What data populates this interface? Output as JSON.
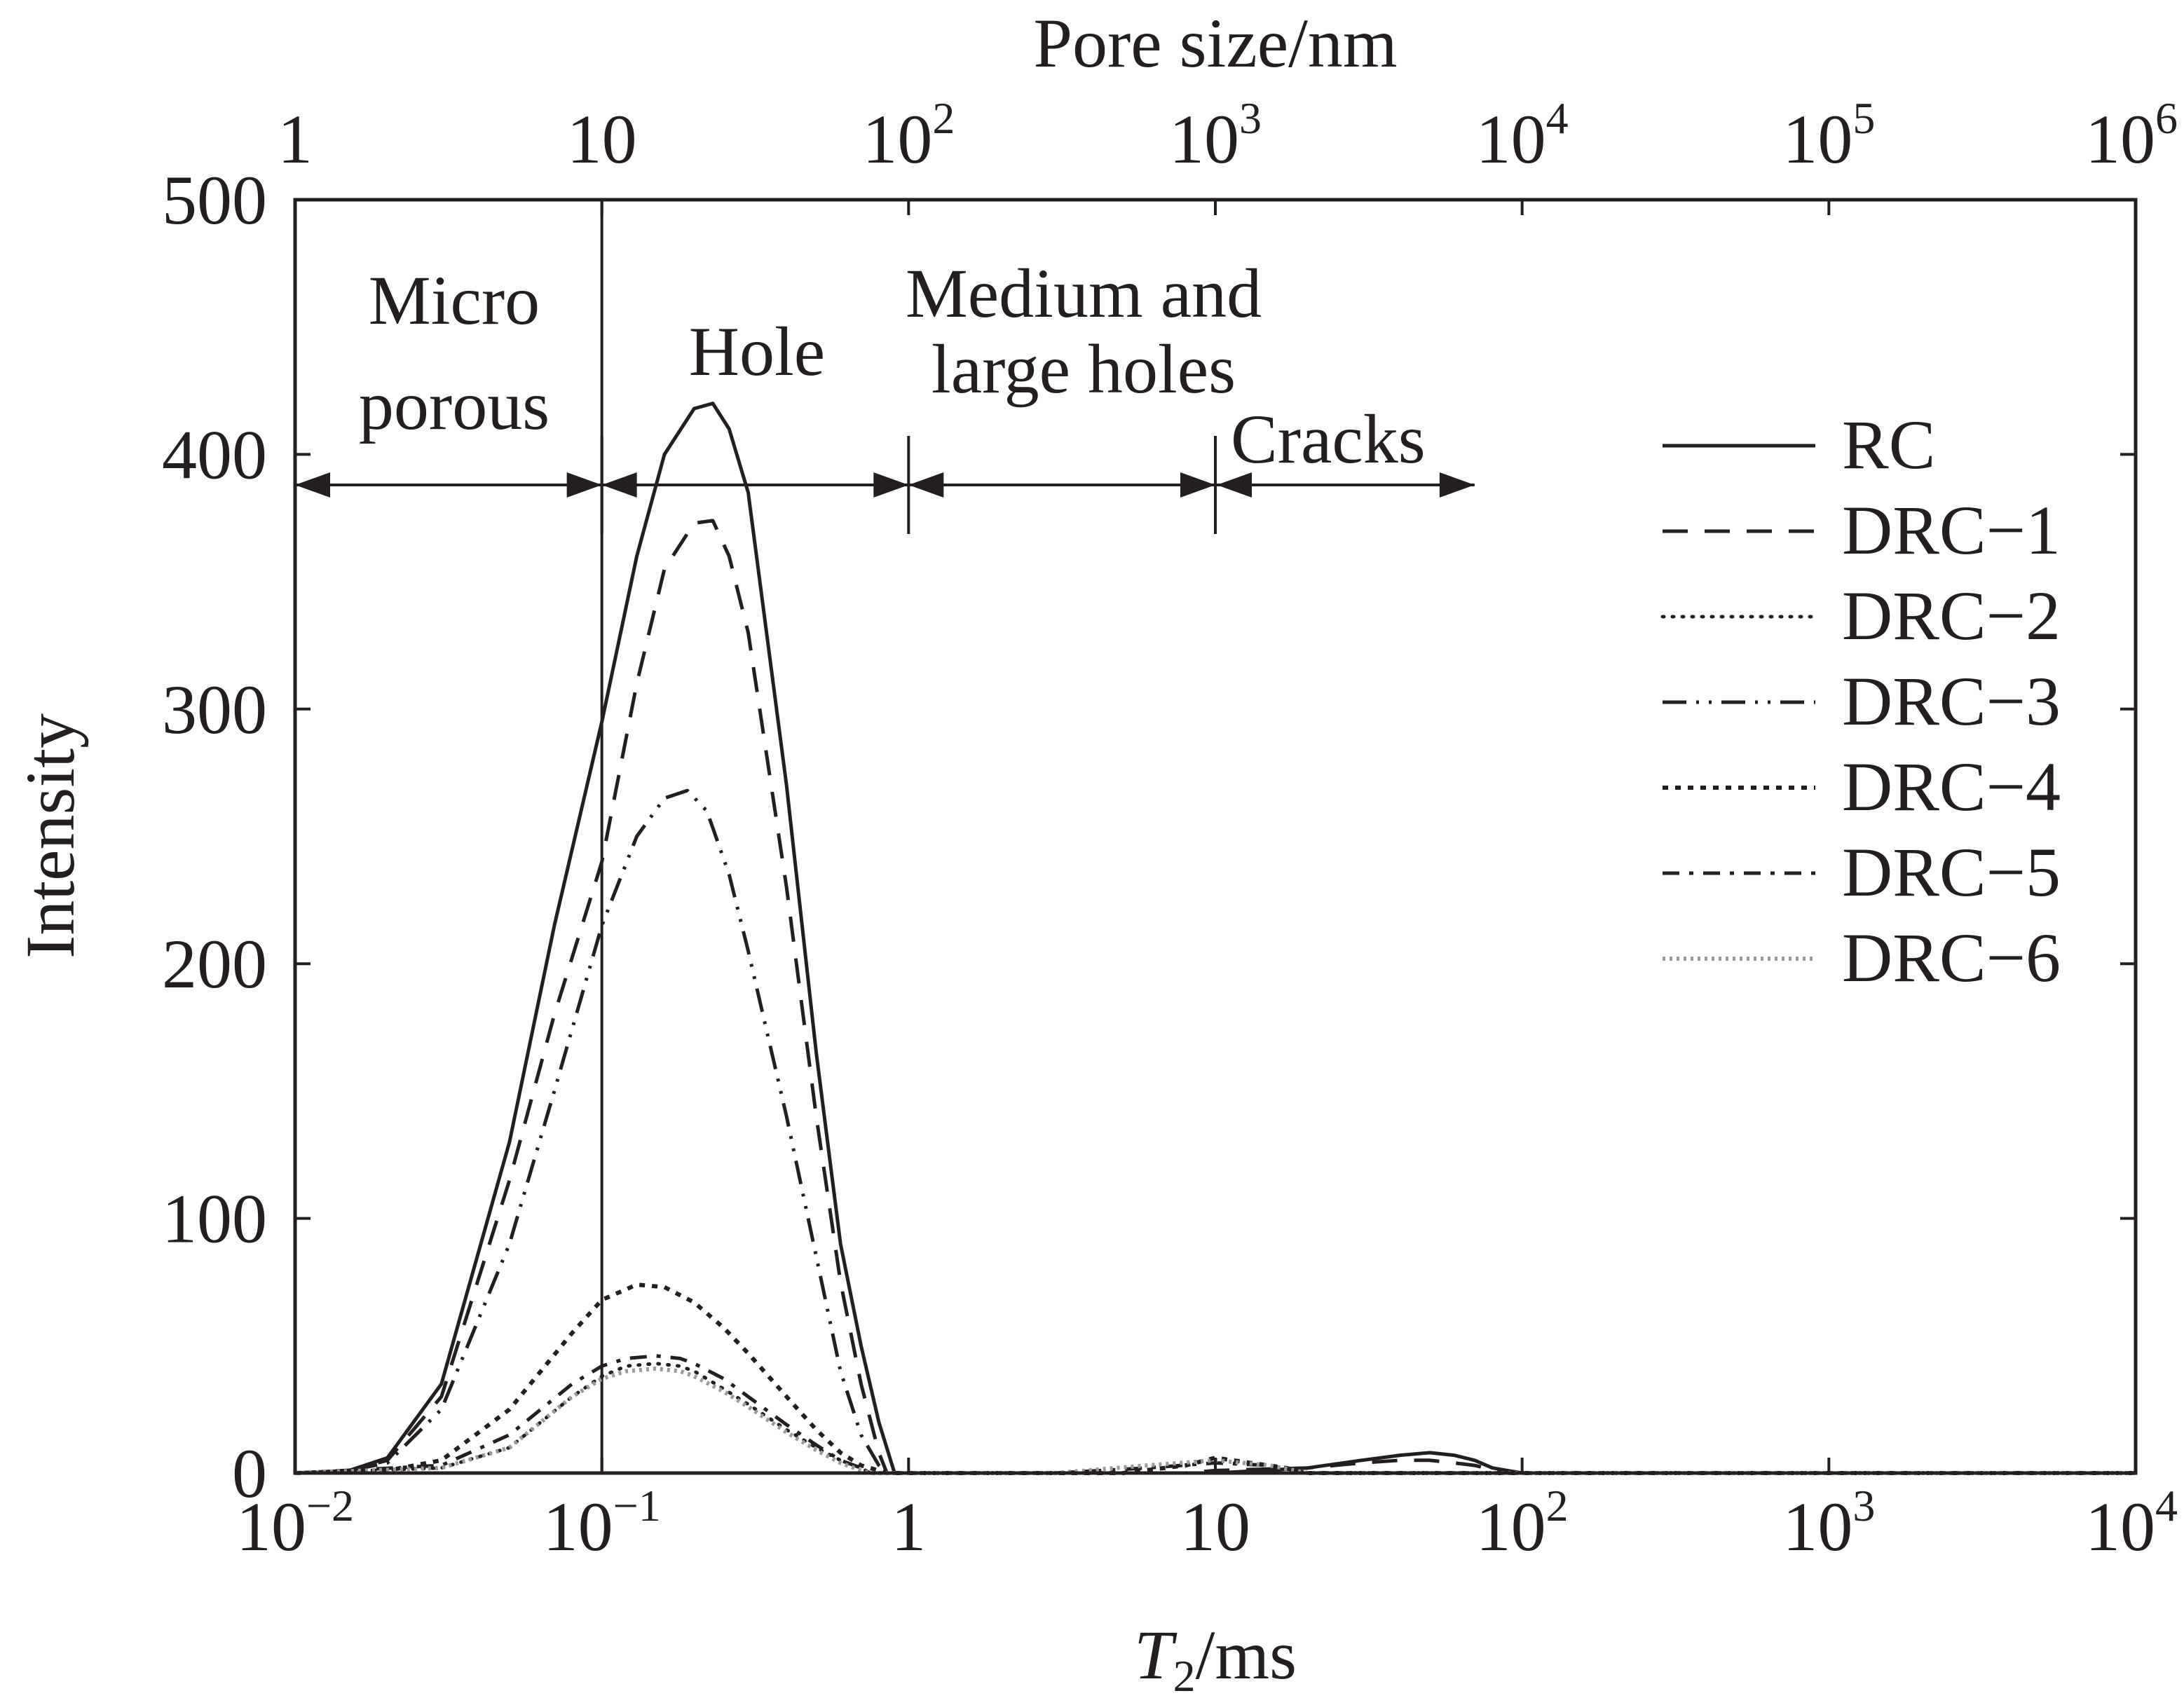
{
  "chart_data": {
    "type": "line",
    "title": "",
    "xlabel_italic": "T",
    "xlabel_sub": "2",
    "xlabel_rest": "/ms",
    "ylabel": "Intensity",
    "x_top_label": "Pore size/nm",
    "x_scale": "log",
    "xlim": [
      0.01,
      10000
    ],
    "ylim": [
      0,
      500
    ],
    "x_top_lim": [
      1,
      1000000
    ],
    "x_ticks": [
      {
        "value": 0.01,
        "base": "10",
        "exp": "−2"
      },
      {
        "value": 0.1,
        "base": "10",
        "exp": "−1"
      },
      {
        "value": 1,
        "base": "1",
        "exp": ""
      },
      {
        "value": 10,
        "base": "10",
        "exp": ""
      },
      {
        "value": 100,
        "base": "10",
        "exp": "2"
      },
      {
        "value": 1000,
        "base": "10",
        "exp": "3"
      },
      {
        "value": 10000,
        "base": "10",
        "exp": "4"
      }
    ],
    "x_top_ticks": [
      {
        "value": 1,
        "base": "1",
        "exp": ""
      },
      {
        "value": 10,
        "base": "10",
        "exp": ""
      },
      {
        "value": 100,
        "base": "10",
        "exp": "2"
      },
      {
        "value": 1000,
        "base": "10",
        "exp": "3"
      },
      {
        "value": 10000,
        "base": "10",
        "exp": "4"
      },
      {
        "value": 100000,
        "base": "10",
        "exp": "5"
      },
      {
        "value": 1000000,
        "base": "10",
        "exp": "6"
      }
    ],
    "y_ticks": [
      0,
      100,
      200,
      300,
      400,
      500
    ],
    "regions": [
      {
        "label_lines": [
          "Micro",
          "porous"
        ],
        "x_start": 0.01,
        "x_end": 0.1
      },
      {
        "label_lines": [
          "Hole"
        ],
        "x_start": 0.1,
        "x_end": 1
      },
      {
        "label_lines": [
          "Medium and",
          "large holes"
        ],
        "x_start": 1,
        "x_end": 10
      },
      {
        "label_lines": [
          "Cracks"
        ],
        "x_start": 10,
        "x_end": 70
      }
    ],
    "region_arrow_y": 388,
    "boundary_line_x": 0.1,
    "legend_position": "right",
    "series": [
      {
        "name": "RC",
        "style": "solid",
        "x": [
          0.01,
          0.015,
          0.02,
          0.03,
          0.05,
          0.07,
          0.1,
          0.13,
          0.16,
          0.2,
          0.23,
          0.26,
          0.3,
          0.4,
          0.5,
          0.6,
          0.7,
          0.8,
          0.9,
          10,
          20,
          30,
          40,
          50,
          60,
          70,
          80,
          100,
          10000
        ],
        "y": [
          0,
          1,
          6,
          35,
          130,
          215,
          295,
          360,
          400,
          418,
          420,
          410,
          385,
          270,
          165,
          90,
          50,
          20,
          0,
          0,
          2,
          5,
          7,
          8,
          7,
          5,
          2,
          0,
          0
        ]
      },
      {
        "name": "DRC−1",
        "style": "dashed",
        "x": [
          0.01,
          0.015,
          0.02,
          0.03,
          0.05,
          0.07,
          0.1,
          0.13,
          0.16,
          0.2,
          0.23,
          0.26,
          0.3,
          0.4,
          0.5,
          0.6,
          0.7,
          0.8,
          0.85,
          8,
          10,
          20,
          30,
          40,
          50,
          60,
          70,
          90,
          10000
        ],
        "y": [
          0,
          1,
          5,
          30,
          115,
          180,
          240,
          310,
          355,
          373,
          374,
          360,
          330,
          230,
          140,
          75,
          35,
          8,
          0,
          0,
          1,
          2,
          4,
          5,
          5,
          4,
          3,
          0,
          0
        ]
      },
      {
        "name": "DRC−2",
        "style": "dotted-fine",
        "x": [
          0.01,
          0.03,
          0.05,
          0.08,
          0.1,
          0.12,
          0.15,
          0.18,
          0.2,
          0.25,
          0.3,
          0.4,
          0.5,
          0.6,
          0.7,
          0.75,
          10000
        ],
        "y": [
          0,
          2,
          10,
          30,
          38,
          42,
          43,
          42,
          40,
          33,
          27,
          17,
          10,
          5,
          2,
          0,
          0
        ]
      },
      {
        "name": "DRC−3",
        "style": "dash-dot-dot",
        "x": [
          0.01,
          0.015,
          0.02,
          0.03,
          0.05,
          0.07,
          0.1,
          0.13,
          0.16,
          0.19,
          0.22,
          0.26,
          0.3,
          0.4,
          0.5,
          0.6,
          0.7,
          0.8,
          0.85,
          10000
        ],
        "y": [
          0,
          1,
          4,
          25,
          90,
          150,
          215,
          250,
          265,
          268,
          260,
          235,
          205,
          140,
          85,
          40,
          15,
          3,
          0,
          0
        ]
      },
      {
        "name": "DRC−4",
        "style": "dotted",
        "x": [
          0.01,
          0.02,
          0.03,
          0.05,
          0.08,
          0.1,
          0.13,
          0.16,
          0.2,
          0.25,
          0.3,
          0.4,
          0.5,
          0.6,
          0.7,
          0.8,
          0.85,
          5,
          8,
          10,
          13,
          17,
          20,
          10000
        ],
        "y": [
          0,
          1,
          5,
          25,
          55,
          68,
          74,
          73,
          67,
          57,
          47,
          30,
          17,
          8,
          3,
          1,
          0,
          0,
          3,
          6,
          4,
          2,
          0,
          0
        ]
      },
      {
        "name": "DRC−5",
        "style": "dash-dot",
        "x": [
          0.01,
          0.03,
          0.05,
          0.08,
          0.1,
          0.12,
          0.15,
          0.18,
          0.2,
          0.25,
          0.3,
          0.4,
          0.5,
          0.6,
          0.7,
          0.75,
          3,
          6,
          10,
          15,
          20,
          10000
        ],
        "y": [
          0,
          3,
          15,
          35,
          42,
          45,
          46,
          45,
          43,
          37,
          30,
          19,
          11,
          5,
          2,
          0,
          0,
          2,
          4,
          3,
          0,
          0
        ]
      },
      {
        "name": "DRC−6",
        "style": "dotted-grey",
        "x": [
          0.01,
          0.03,
          0.05,
          0.08,
          0.1,
          0.12,
          0.15,
          0.18,
          0.2,
          0.25,
          0.3,
          0.4,
          0.5,
          0.6,
          0.7,
          0.75,
          3,
          6,
          10,
          15,
          20,
          10000
        ],
        "y": [
          0,
          2,
          10,
          30,
          37,
          40,
          41,
          40,
          38,
          32,
          26,
          16,
          9,
          4,
          1,
          0,
          0,
          3,
          5,
          3,
          0,
          0
        ]
      }
    ]
  },
  "colors": {
    "ink": "#231f20",
    "grey_ink": "#9a9a9a",
    "background": "#ffffff"
  }
}
